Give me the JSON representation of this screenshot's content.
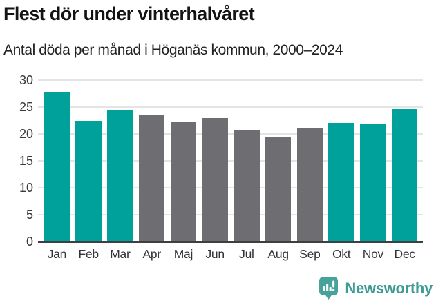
{
  "header": {
    "title": "Flest dör under vinterhalvåret",
    "subtitle": "Antal döda per månad i Höganäs kommun, 2000–2024"
  },
  "footer": {
    "brand": "Newsworthy"
  },
  "colors": {
    "teal": "#00a09b",
    "gray": "#6d6d72",
    "axis": "#3e3e43",
    "gridline": "#e4e4e4",
    "logo_teal": "#46a29a",
    "brand_text": "#3f9c94"
  },
  "chart_data": {
    "type": "bar",
    "title": "Flest dör under vinterhalvåret",
    "subtitle": "Antal döda per månad i Höganäs kommun, 2000–2024",
    "categories": [
      "Jan",
      "Feb",
      "Mar",
      "Apr",
      "Maj",
      "Jun",
      "Jul",
      "Aug",
      "Sep",
      "Okt",
      "Nov",
      "Dec"
    ],
    "values": [
      27.8,
      22.3,
      24.3,
      23.4,
      22.2,
      23.0,
      20.8,
      19.5,
      21.2,
      22.0,
      21.9,
      24.6
    ],
    "bar_colors": [
      "teal",
      "teal",
      "teal",
      "gray",
      "gray",
      "gray",
      "gray",
      "gray",
      "gray",
      "teal",
      "teal",
      "teal"
    ],
    "xlabel": "",
    "ylabel": "",
    "ylim": [
      0,
      30
    ],
    "yticks": [
      0,
      5,
      10,
      15,
      20,
      25,
      30
    ],
    "grid": "horizontal-behind-bars",
    "legend": "none"
  }
}
